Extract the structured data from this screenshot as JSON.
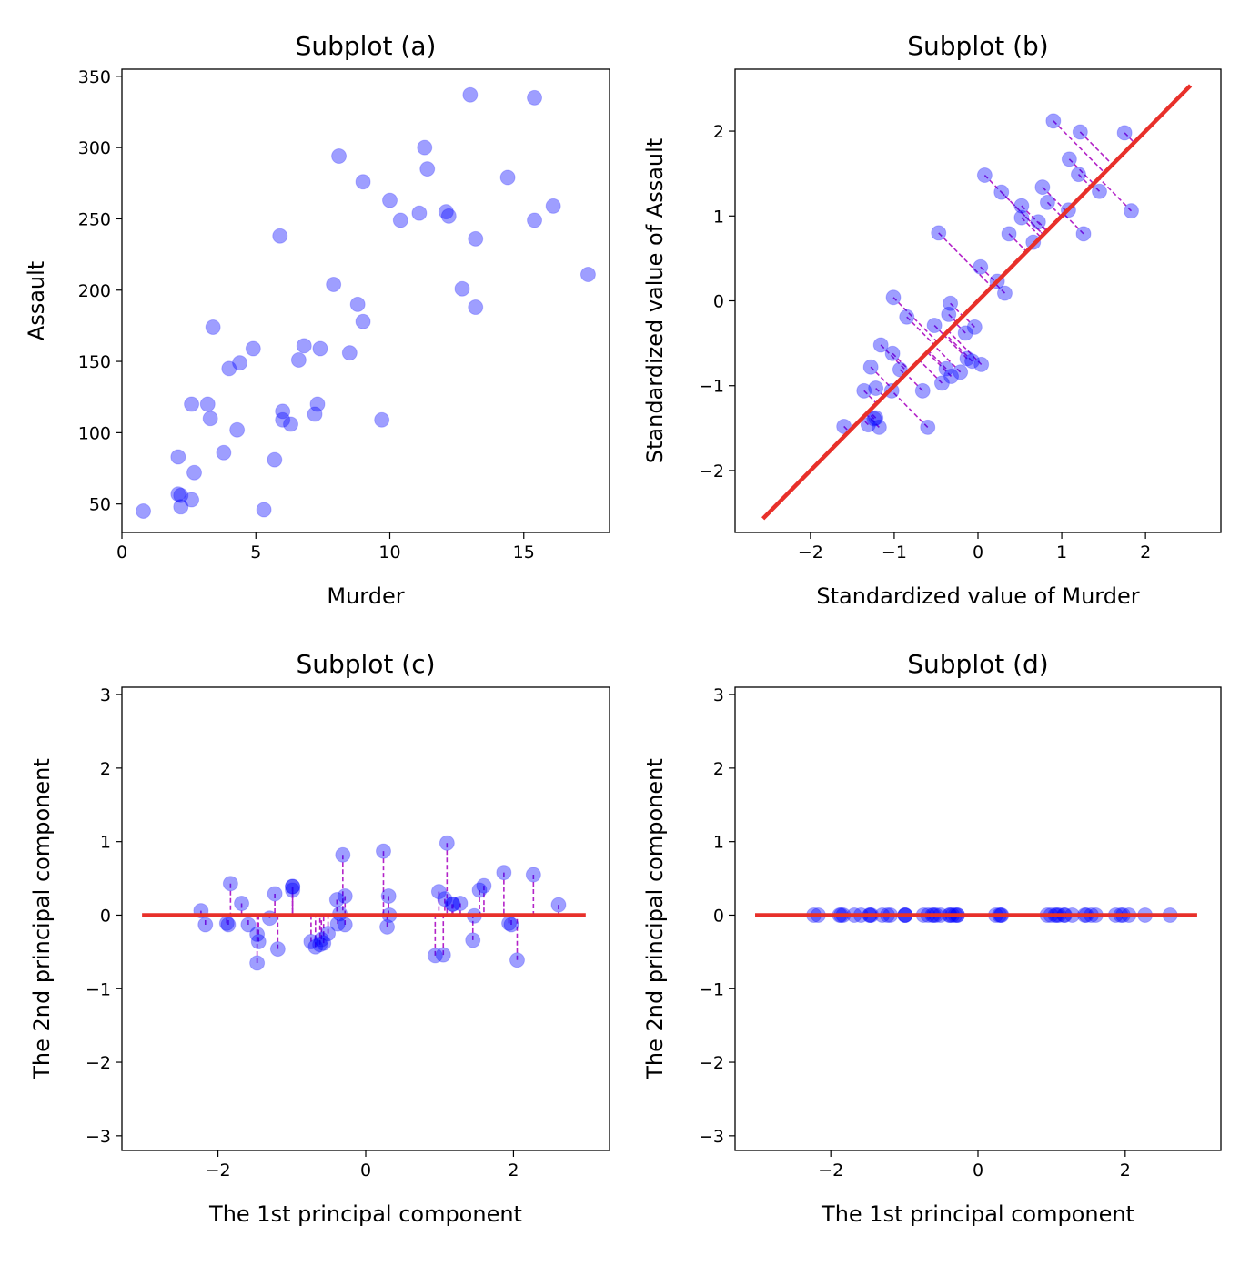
{
  "chart_data": [
    {
      "id": "a",
      "type": "scatter",
      "title": "Subplot (a)",
      "xlabel": "Murder",
      "ylabel": "Assault",
      "xlim": [
        0,
        18.2
      ],
      "ylim": [
        30,
        355
      ],
      "xticks": [
        0,
        5,
        10,
        15
      ],
      "yticks": [
        50,
        100,
        150,
        200,
        250,
        300,
        350
      ],
      "point_color": "#0000ff",
      "points": [
        [
          13.2,
          236
        ],
        [
          10.0,
          263
        ],
        [
          8.1,
          294
        ],
        [
          8.8,
          190
        ],
        [
          9.0,
          276
        ],
        [
          7.9,
          204
        ],
        [
          3.3,
          110
        ],
        [
          5.9,
          238
        ],
        [
          15.4,
          335
        ],
        [
          17.4,
          211
        ],
        [
          5.3,
          46
        ],
        [
          2.6,
          120
        ],
        [
          10.4,
          249
        ],
        [
          7.2,
          113
        ],
        [
          2.2,
          56
        ],
        [
          6.0,
          115
        ],
        [
          9.7,
          109
        ],
        [
          15.4,
          249
        ],
        [
          2.1,
          83
        ],
        [
          11.3,
          300
        ],
        [
          4.4,
          149
        ],
        [
          12.1,
          255
        ],
        [
          2.7,
          72
        ],
        [
          16.1,
          259
        ],
        [
          9.0,
          178
        ],
        [
          6.0,
          109
        ],
        [
          4.3,
          102
        ],
        [
          12.2,
          252
        ],
        [
          2.1,
          57
        ],
        [
          7.4,
          159
        ],
        [
          11.4,
          285
        ],
        [
          11.1,
          254
        ],
        [
          13.0,
          337
        ],
        [
          0.8,
          45
        ],
        [
          7.3,
          120
        ],
        [
          6.6,
          151
        ],
        [
          4.9,
          159
        ],
        [
          6.3,
          106
        ],
        [
          3.4,
          174
        ],
        [
          14.4,
          279
        ],
        [
          3.8,
          86
        ],
        [
          13.2,
          188
        ],
        [
          12.7,
          201
        ],
        [
          3.2,
          120
        ],
        [
          2.2,
          48
        ],
        [
          8.5,
          156
        ],
        [
          4.0,
          145
        ],
        [
          5.7,
          81
        ],
        [
          2.6,
          53
        ],
        [
          6.8,
          161
        ]
      ]
    },
    {
      "id": "b",
      "type": "scatter",
      "title": "Subplot (b)",
      "xlabel": "Standardized value of Murder",
      "ylabel": "Standardized value of Assault",
      "xlim": [
        -2.9,
        2.9
      ],
      "ylim": [
        -2.73,
        2.73
      ],
      "xticks": [
        -2,
        -1,
        0,
        1,
        2
      ],
      "yticks": [
        -2,
        -1,
        0,
        1,
        2
      ],
      "tick_labels_x": [
        "−2",
        "−1",
        "0",
        "1",
        "2"
      ],
      "tick_labels_y": [
        "−2",
        "−1",
        "0",
        "1",
        "2"
      ],
      "point_color": "#0000ff",
      "line_color": "#e8302a",
      "projection_color": "#b323c8",
      "line": [
        [
          -2.55,
          -2.55
        ],
        [
          2.52,
          2.52
        ]
      ],
      "points": [
        [
          1.26,
          0.79
        ],
        [
          0.52,
          1.12
        ],
        [
          0.08,
          1.48
        ],
        [
          0.23,
          0.23
        ],
        [
          0.28,
          1.28
        ],
        [
          0.03,
          0.4
        ],
        [
          -0.93,
          -0.81
        ],
        [
          -0.47,
          0.8
        ],
        [
          1.22,
          1.99
        ],
        [
          1.75,
          1.98
        ],
        [
          -0.6,
          -1.49
        ],
        [
          -1.02,
          -0.62
        ],
        [
          0.52,
          0.98
        ],
        [
          -0.21,
          -0.84
        ],
        [
          -1.22,
          -1.38
        ],
        [
          -0.13,
          -0.68
        ],
        [
          0.04,
          -0.75
        ],
        [
          1.45,
          1.29
        ],
        [
          -1.36,
          -1.06
        ],
        [
          1.08,
          1.07
        ],
        [
          -0.52,
          -0.29
        ],
        [
          0.72,
          0.93
        ],
        [
          -1.22,
          -1.03
        ],
        [
          1.83,
          1.06
        ],
        [
          0.32,
          0.09
        ],
        [
          -0.07,
          -0.71
        ],
        [
          -0.38,
          -0.8
        ],
        [
          0.37,
          0.79
        ],
        [
          -1.24,
          -1.39
        ],
        [
          -0.35,
          -0.16
        ],
        [
          1.2,
          1.49
        ],
        [
          0.83,
          1.16
        ],
        [
          0.9,
          2.12
        ],
        [
          -1.6,
          -1.48
        ],
        [
          -0.32,
          -0.89
        ],
        [
          -0.15,
          -0.38
        ],
        [
          -1.16,
          -0.52
        ],
        [
          -0.43,
          -0.97
        ],
        [
          -1.01,
          0.04
        ],
        [
          1.09,
          1.67
        ],
        [
          -1.28,
          -0.78
        ],
        [
          0.66,
          0.69
        ],
        [
          0.77,
          1.34
        ],
        [
          -1.03,
          -1.06
        ],
        [
          -1.31,
          -1.46
        ],
        [
          -0.04,
          -0.31
        ],
        [
          -0.85,
          -0.19
        ],
        [
          -0.66,
          -1.06
        ],
        [
          -1.18,
          -1.49
        ],
        [
          -0.33,
          -0.03
        ]
      ]
    },
    {
      "id": "c",
      "type": "scatter",
      "title": "Subplot (c)",
      "xlabel": "The 1st principal component",
      "ylabel": "The 2nd principal component",
      "xlim": [
        -3.3,
        3.3
      ],
      "ylim": [
        -3.2,
        3.1
      ],
      "xticks": [
        -2,
        0,
        2
      ],
      "yticks": [
        -3,
        -2,
        -1,
        0,
        1,
        2,
        3
      ],
      "tick_labels_x": [
        "−2",
        "0",
        "2"
      ],
      "tick_labels_y": [
        "−3",
        "−2",
        "−1",
        "0",
        "1",
        "2",
        "3"
      ],
      "point_color": "#0000ff",
      "line_color": "#e8302a",
      "projection_color": "#b323c8",
      "line": [
        [
          -3.0,
          0.0
        ],
        [
          2.95,
          0.0
        ]
      ],
      "points": [
        [
          1.45,
          -0.34
        ],
        [
          1.07,
          0.22
        ],
        [
          1.1,
          0.98
        ],
        [
          0.32,
          0.0
        ],
        [
          1.28,
          0.16
        ],
        [
          0.31,
          0.26
        ],
        [
          -1.23,
          0.29
        ],
        [
          0.24,
          0.87
        ],
        [
          2.27,
          0.55
        ],
        [
          2.61,
          0.14
        ],
        [
          -1.47,
          -0.65
        ],
        [
          -0.99,
          0.34
        ],
        [
          1.05,
          -0.54
        ],
        [
          -0.74,
          -0.36
        ],
        [
          -1.88,
          -0.11
        ],
        [
          -0.57,
          -0.38
        ],
        [
          -0.35,
          0.02
        ],
        [
          1.94,
          -0.11
        ],
        [
          -1.68,
          0.16
        ],
        [
          1.47,
          -0.01
        ],
        [
          -0.6,
          -0.33
        ],
        [
          1.18,
          0.15
        ],
        [
          -1.59,
          -0.13
        ],
        [
          2.05,
          -0.61
        ],
        [
          0.29,
          -0.16
        ],
        [
          -0.68,
          -0.43
        ],
        [
          -0.51,
          -0.25
        ],
        [
          0.99,
          0.32
        ],
        [
          -1.86,
          -0.13
        ],
        [
          -0.28,
          -0.13
        ],
        [
          1.6,
          0.4
        ],
        [
          1.17,
          0.15
        ],
        [
          1.87,
          0.58
        ],
        [
          -2.23,
          0.06
        ],
        [
          -0.62,
          -0.4
        ],
        [
          -0.38,
          -0.12
        ],
        [
          -1.19,
          -0.46
        ],
        [
          -0.99,
          0.39
        ],
        [
          -0.99,
          0.39
        ],
        [
          1.97,
          -0.13
        ],
        [
          -1.45,
          -0.36
        ],
        [
          0.94,
          -0.55
        ],
        [
          1.54,
          0.34
        ],
        [
          -1.47,
          -0.26
        ],
        [
          -2.17,
          -0.13
        ],
        [
          -0.28,
          0.26
        ],
        [
          -0.31,
          0.82
        ],
        [
          -1.3,
          -0.04
        ],
        [
          -1.83,
          0.43
        ],
        [
          -0.39,
          0.21
        ]
      ]
    },
    {
      "id": "d",
      "type": "scatter",
      "title": "Subplot (d)",
      "xlabel": "The 1st principal component",
      "ylabel": "The 2nd principal component",
      "xlim": [
        -3.3,
        3.3
      ],
      "ylim": [
        -3.2,
        3.1
      ],
      "xticks": [
        -2,
        0,
        2
      ],
      "yticks": [
        -3,
        -2,
        -1,
        0,
        1,
        2,
        3
      ],
      "tick_labels_x": [
        "−2",
        "0",
        "2"
      ],
      "tick_labels_y": [
        "−3",
        "−2",
        "−1",
        "0",
        "1",
        "2",
        "3"
      ],
      "point_color": "#0000ff",
      "line_color": "#e8302a",
      "line": [
        [
          -3.0,
          0.0
        ],
        [
          2.95,
          0.0
        ]
      ],
      "points": [
        [
          1.45,
          0
        ],
        [
          1.07,
          0
        ],
        [
          1.1,
          0
        ],
        [
          0.32,
          0
        ],
        [
          1.28,
          0
        ],
        [
          0.31,
          0
        ],
        [
          -1.23,
          0
        ],
        [
          0.24,
          0
        ],
        [
          2.27,
          0
        ],
        [
          2.61,
          0
        ],
        [
          -1.47,
          0
        ],
        [
          -0.99,
          0
        ],
        [
          1.05,
          0
        ],
        [
          -0.74,
          0
        ],
        [
          -1.88,
          0
        ],
        [
          -0.57,
          0
        ],
        [
          -0.35,
          0
        ],
        [
          1.94,
          0
        ],
        [
          -1.68,
          0
        ],
        [
          1.47,
          0
        ],
        [
          -0.6,
          0
        ],
        [
          1.18,
          0
        ],
        [
          -1.59,
          0
        ],
        [
          2.05,
          0
        ],
        [
          0.29,
          0
        ],
        [
          -0.68,
          0
        ],
        [
          -0.51,
          0
        ],
        [
          0.99,
          0
        ],
        [
          -1.86,
          0
        ],
        [
          -0.28,
          0
        ],
        [
          1.6,
          0
        ],
        [
          1.17,
          0
        ],
        [
          1.87,
          0
        ],
        [
          -2.23,
          0
        ],
        [
          -0.62,
          0
        ],
        [
          -0.38,
          0
        ],
        [
          -1.19,
          0
        ],
        [
          -0.99,
          0
        ],
        [
          -0.99,
          0
        ],
        [
          1.97,
          0
        ],
        [
          -1.45,
          0
        ],
        [
          0.94,
          0
        ],
        [
          1.54,
          0
        ],
        [
          -1.47,
          0
        ],
        [
          -2.17,
          0
        ],
        [
          -0.28,
          0
        ],
        [
          -0.31,
          0
        ],
        [
          -1.3,
          0
        ],
        [
          -1.83,
          0
        ],
        [
          -0.39,
          0
        ]
      ]
    }
  ]
}
